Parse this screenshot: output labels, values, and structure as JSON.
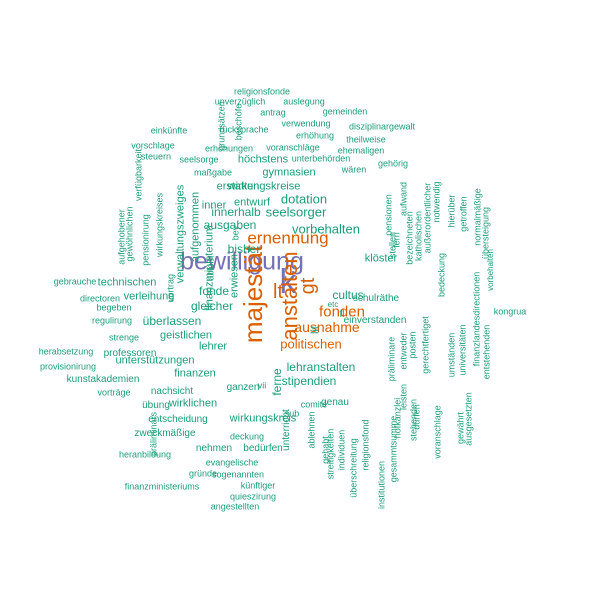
{
  "colors": {
    "small": "#1b9e77",
    "medium": "#d95f02",
    "large": "#7570b3"
  },
  "words": [
    "bewilligung",
    "k",
    "majestät",
    "anstalten",
    "lt",
    "gt",
    "ernennung",
    "ausnahme",
    "fonden",
    "politischen",
    "vorbehalten",
    "dotation",
    "cultus",
    "seelsorger",
    "innerhalb",
    "ausgaben",
    "bisher",
    "fonde",
    "gleicher",
    "überlassen",
    "lehranstalten",
    "stipendien",
    "klöster",
    "lehrer",
    "finanzen",
    "unterstützungen",
    "geistlichen",
    "wirklichen",
    "ganzen",
    "wirkungskreis",
    "genau",
    "unterricht",
    "ferne",
    "lit",
    "fl",
    "etc",
    "schulräthe",
    "einverstanden",
    "wirkungskreise",
    "gymnasien",
    "höchstens",
    "erstatten",
    "entwurf",
    "inner",
    "erwiesen",
    "aufgenommen",
    "finanzministerium",
    "verwaltungszweiges",
    "verleihung",
    "technischen",
    "professoren",
    "kunstakademien",
    "nachsicht",
    "zweckmäßige",
    "entscheidung",
    "übung",
    "nehmen",
    "bedürfen",
    "deckung",
    "evangelische",
    "gründe",
    "sogenannten",
    "finanzministeriums",
    "künftiger",
    "quieszirung",
    "angestellten",
    "heranbildung",
    "präliminars",
    "vorträge",
    "provisionirung",
    "herabsetzung",
    "strenge",
    "regulirung",
    "begeben",
    "directoren",
    "gebrauche",
    "aufgehobener",
    "gewöhnlichen",
    "pensionirung",
    "verfügbarkeit",
    "wirkungskreises",
    "vortrag",
    "abloßt",
    "bey",
    "religionsfonde",
    "unverzüglich",
    "auslegung",
    "beschöfe",
    "grundsätzen",
    "gemeinden",
    "antrag",
    "verwendung",
    "disziplinargewalt",
    "rücksprache",
    "einkünfte",
    "erhöhung",
    "theilweise",
    "ehemaligen",
    "vorschlage",
    "erhöhungen",
    "voranschläge",
    "unterbehörden",
    "steuern",
    "seelsorge",
    "gehörig",
    "wären",
    "maßgabe",
    "stellen",
    "pensionen",
    "aufwand",
    "katholischen",
    "außerordentlicher",
    "notwendig",
    "hierüber",
    "getroffen",
    "normalmäßige",
    "übersteigung",
    "bedeckung",
    "vorbehalten",
    "bezeichneten",
    "fern",
    "kongrua",
    "gerechtfertiget",
    "posten",
    "entweder",
    "präliminare",
    "umständen",
    "universitäten",
    "finanzlandesdirectionen",
    "entstehenden",
    "voranschlage",
    "ausgesetzten",
    "gewährt",
    "leisten",
    "dürfen",
    "stehenden",
    "hofkanzlei",
    "gesammtsumme",
    "institutionen",
    "religionsfond",
    "überschreitung",
    "individuen",
    "streitigkeiten",
    "gehabt",
    "ablehnen",
    "comité",
    "sub",
    "vii"
  ]
}
